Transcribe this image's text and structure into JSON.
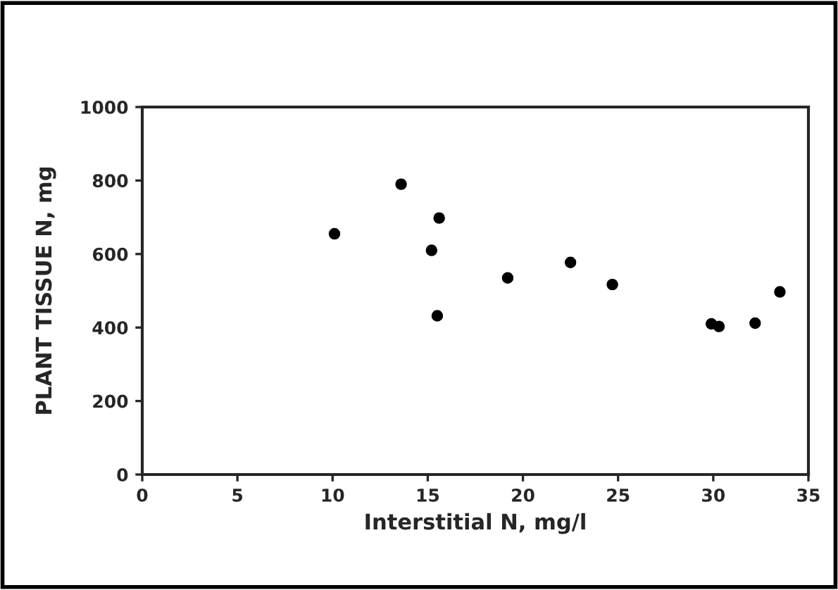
{
  "chart_data": {
    "type": "scatter",
    "xlabel": "Interstitial N, mg/l",
    "ylabel": "PLANT TISSUE N, mg",
    "x": [
      10.1,
      13.6,
      15.2,
      15.5,
      15.6,
      19.2,
      22.5,
      24.7,
      29.9,
      30.3,
      32.2,
      33.5
    ],
    "values": [
      655,
      790,
      610,
      432,
      698,
      535,
      577,
      517,
      410,
      403,
      412,
      497
    ],
    "color": "#000000",
    "marker": "circle",
    "xlim": [
      0,
      35
    ],
    "xticks": [
      0,
      5,
      10,
      15,
      20,
      25,
      30,
      35
    ],
    "ylim": [
      0,
      1000
    ],
    "yticks": [
      0,
      200,
      400,
      600,
      800,
      1000
    ],
    "grid": false
  }
}
